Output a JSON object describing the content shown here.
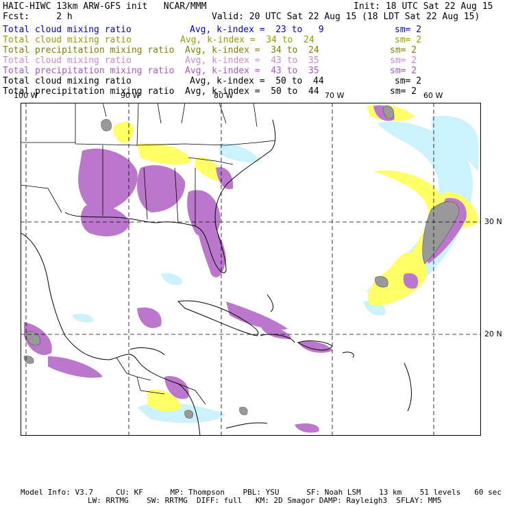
{
  "header": {
    "title_line1": "HAIC-HIWC 13km ARW-GFS init   NCAR/MMM",
    "init_line": "Init: 18 UTC Sat 22 Aug 15",
    "fcst_line": "Fcst:     2 h",
    "valid_line": "Valid: 20 UTC Sat 22 Aug 15 (18 LDT Sat 22 Aug 15)"
  },
  "legend": [
    {
      "label": "Total cloud mixing ratio",
      "avg": "Avg, k-index =  23 to   9",
      "sm": "sm= 2",
      "color": "#0000cc"
    },
    {
      "label": "Total cloud mixing ratio",
      "avg": "Avg, k-index =  34 to  24",
      "sm": "sm= 2",
      "color": "#999900"
    },
    {
      "label": "Total precipitation mixing ratio",
      "avg": "Avg, k-index =  34 to  24",
      "sm": "sm= 2",
      "color": "#808000"
    },
    {
      "label": "Total cloud mixing ratio",
      "avg": "Avg, k-index =  43 to  35",
      "sm": "sm= 2",
      "color": "#cc88cc"
    },
    {
      "label": "Total precipitation mixing ratio",
      "avg": "Avg, k-index =  43 to  35",
      "sm": "sm= 2",
      "color": "#aa55cc"
    },
    {
      "label": "Total cloud mixing ratio",
      "avg": "Avg, k-index =  50 to  44",
      "sm": "sm= 2",
      "color": "#000000"
    },
    {
      "label": "Total precipitation mixing ratio",
      "avg": "Avg, k-index =  50 to  44",
      "sm": "sm= 2",
      "color": "#000000"
    }
  ],
  "map": {
    "longitude_labels": [
      "100 W",
      "90 W",
      "80 W",
      "70 W",
      "60 W"
    ],
    "latitude_labels": [
      "30 N",
      "20 N"
    ],
    "colors": {
      "light_cyan": "#ccf2ff",
      "yellow": "#ffff66",
      "magenta": "#bb77cc",
      "gray": "#999999",
      "coast": "#000000"
    }
  },
  "footer": {
    "line1": "Model Info: V3.7     CU: KF      MP: Thompson    PBL: YSU      SF: Noah LSM    13 km    51 levels   60 sec",
    "line2": "LW: RRTMG    SW: RRTMG  DIFF: full   KM: 2D Smagor DAMP: Rayleigh3  SFLAY: MM5"
  }
}
